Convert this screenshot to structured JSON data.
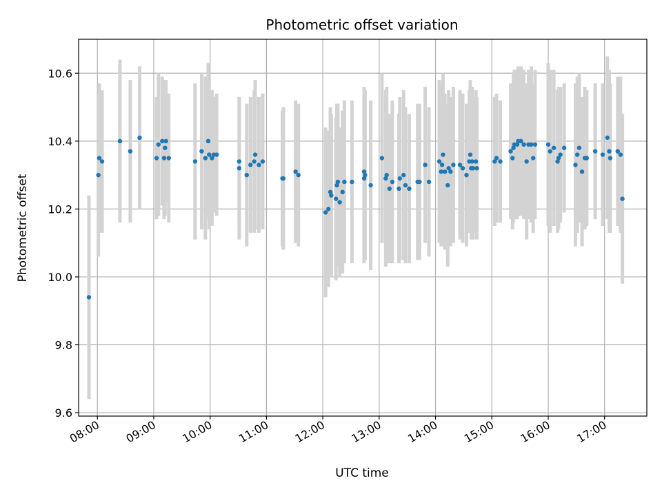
{
  "chart_data": {
    "type": "scatter",
    "title": "Photometric offset variation",
    "xlabel": "UTC time",
    "ylabel": "Photometric offset",
    "xlim": [
      "07:40",
      "17:45"
    ],
    "ylim": [
      9.59,
      10.7
    ],
    "grid": true,
    "xticks": [
      "08:00",
      "09:00",
      "10:00",
      "11:00",
      "12:00",
      "13:00",
      "14:00",
      "15:00",
      "16:00",
      "17:00"
    ],
    "yticks": [
      "9.6",
      "9.8",
      "10.0",
      "10.2",
      "10.4",
      "10.6"
    ],
    "colors": {
      "point": "#1f77b4",
      "errorbar": "#d3d3d3",
      "grid": "#b0b0b0"
    },
    "series": [
      {
        "x": [
          "07:51",
          "08:01",
          "08:02",
          "08:05",
          "08:24",
          "08:35",
          "08:45",
          "09:03",
          "09:05",
          "09:09",
          "09:11",
          "09:12",
          "09:13",
          "09:16",
          "09:44",
          "09:51",
          "09:55",
          "09:58",
          "09:59",
          "10:02",
          "10:04",
          "10:07",
          "10:31",
          "10:31",
          "10:39",
          "10:43",
          "10:47",
          "10:48",
          "10:52",
          "10:56",
          "11:17",
          "11:18",
          "11:31",
          "11:34",
          "12:03",
          "12:06",
          "12:08",
          "12:09",
          "12:14",
          "12:15",
          "12:16",
          "12:18",
          "12:21",
          "12:23",
          "12:31",
          "12:44",
          "12:44",
          "12:45",
          "12:51",
          "13:03",
          "13:07",
          "13:08",
          "13:11",
          "13:14",
          "13:21",
          "13:22",
          "13:26",
          "13:28",
          "13:32",
          "13:41",
          "13:43",
          "13:49",
          "13:53",
          "14:04",
          "14:06",
          "14:07",
          "14:08",
          "14:10",
          "14:13",
          "14:14",
          "14:16",
          "14:19",
          "14:26",
          "14:29",
          "14:33",
          "14:36",
          "14:37",
          "14:38",
          "14:39",
          "14:40",
          "14:43",
          "14:44",
          "15:03",
          "15:05",
          "15:09",
          "15:20",
          "15:22",
          "15:23",
          "15:24",
          "15:27",
          "15:28",
          "15:31",
          "15:34",
          "15:37",
          "15:39",
          "15:42",
          "15:44",
          "15:46",
          "16:00",
          "16:02",
          "16:06",
          "16:10",
          "16:11",
          "16:13",
          "16:17",
          "16:29",
          "16:31",
          "16:33",
          "16:36",
          "16:39",
          "16:41",
          "16:50",
          "16:58",
          "17:03",
          "17:05",
          "17:06",
          "17:14",
          "17:17",
          "17:19"
        ],
        "y": [
          9.94,
          10.3,
          10.35,
          10.34,
          10.4,
          10.37,
          10.41,
          10.35,
          10.39,
          10.4,
          10.35,
          10.38,
          10.4,
          10.35,
          10.34,
          10.37,
          10.35,
          10.4,
          10.36,
          10.35,
          10.36,
          10.36,
          10.34,
          10.32,
          10.3,
          10.33,
          10.34,
          10.36,
          10.33,
          10.34,
          10.29,
          10.29,
          10.31,
          10.3,
          10.19,
          10.2,
          10.25,
          10.24,
          10.23,
          10.27,
          10.28,
          10.22,
          10.25,
          10.28,
          10.28,
          10.29,
          10.31,
          10.3,
          10.27,
          10.35,
          10.29,
          10.3,
          10.26,
          10.28,
          10.26,
          10.29,
          10.3,
          10.27,
          10.26,
          10.28,
          10.28,
          10.33,
          10.28,
          10.34,
          10.31,
          10.33,
          10.36,
          10.31,
          10.27,
          10.32,
          10.31,
          10.33,
          10.33,
          10.32,
          10.3,
          10.34,
          10.36,
          10.32,
          10.34,
          10.32,
          10.34,
          10.32,
          10.34,
          10.35,
          10.34,
          10.37,
          10.35,
          10.38,
          10.39,
          10.39,
          10.4,
          10.4,
          10.39,
          10.34,
          10.39,
          10.39,
          10.35,
          10.39,
          10.39,
          10.37,
          10.38,
          10.34,
          10.35,
          10.36,
          10.38,
          10.33,
          10.36,
          10.38,
          10.31,
          10.35,
          10.35,
          10.37,
          10.36,
          10.41,
          10.37,
          10.35,
          10.37,
          10.36,
          10.23
        ],
        "err": [
          0.3,
          0.24,
          0.22,
          0.21,
          0.24,
          0.21,
          0.21,
          0.18,
          0.21,
          0.19,
          0.18,
          0.2,
          0.18,
          0.19,
          0.23,
          0.23,
          0.24,
          0.23,
          0.22,
          0.2,
          0.17,
          0.18,
          0.19,
          0.21,
          0.21,
          0.2,
          0.21,
          0.22,
          0.2,
          0.2,
          0.2,
          0.21,
          0.21,
          0.21,
          0.25,
          0.23,
          0.25,
          0.24,
          0.24,
          0.24,
          0.23,
          0.22,
          0.24,
          0.24,
          0.24,
          0.25,
          0.25,
          0.25,
          0.25,
          0.25,
          0.26,
          0.26,
          0.22,
          0.24,
          0.22,
          0.24,
          0.25,
          0.23,
          0.22,
          0.23,
          0.23,
          0.23,
          0.22,
          0.24,
          0.22,
          0.24,
          0.24,
          0.23,
          0.24,
          0.23,
          0.22,
          0.23,
          0.22,
          0.22,
          0.21,
          0.21,
          0.22,
          0.21,
          0.22,
          0.21,
          0.21,
          0.21,
          0.19,
          0.19,
          0.18,
          0.2,
          0.21,
          0.22,
          0.22,
          0.22,
          0.22,
          0.22,
          0.22,
          0.23,
          0.22,
          0.23,
          0.22,
          0.22,
          0.24,
          0.24,
          0.23,
          0.21,
          0.21,
          0.2,
          0.19,
          0.24,
          0.23,
          0.22,
          0.22,
          0.21,
          0.2,
          0.2,
          0.21,
          0.24,
          0.24,
          0.22,
          0.22,
          0.23,
          0.25
        ]
      }
    ]
  }
}
